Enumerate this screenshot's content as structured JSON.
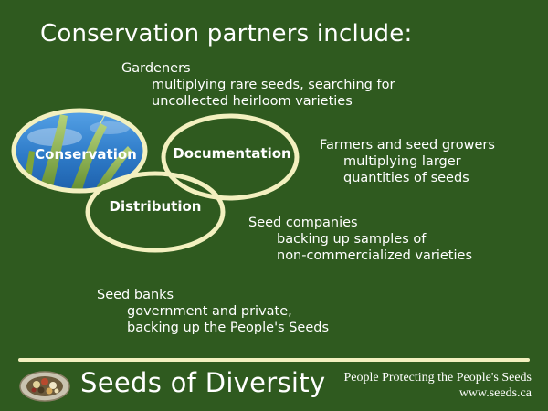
{
  "slide": {
    "title": "Conservation partners include:",
    "venn": {
      "conservation": "Conservation",
      "documentation": "Documentation",
      "distribution": "Distribution"
    },
    "partners": [
      {
        "name": "Gardeners",
        "lines": [
          "multiplying rare seeds, searching for",
          "uncollected heirloom varieties"
        ]
      },
      {
        "name": "Farmers and seed growers",
        "lines": [
          "multiplying larger",
          "quantities of seeds"
        ]
      },
      {
        "name": "Seed companies",
        "lines": [
          "backing up samples of",
          "non-commercialized varieties"
        ]
      },
      {
        "name": "Seed banks",
        "lines": [
          "government and private,",
          "backing up the People's Seeds"
        ]
      }
    ]
  },
  "footer": {
    "brand": "Seeds of Diversity",
    "tagline": "People Protecting the People's Seeds",
    "url": "www.seeds.ca"
  },
  "colors": {
    "background": "#2f5a1f",
    "ring": "#f3f0bf",
    "sky": "#2e7bc8"
  }
}
